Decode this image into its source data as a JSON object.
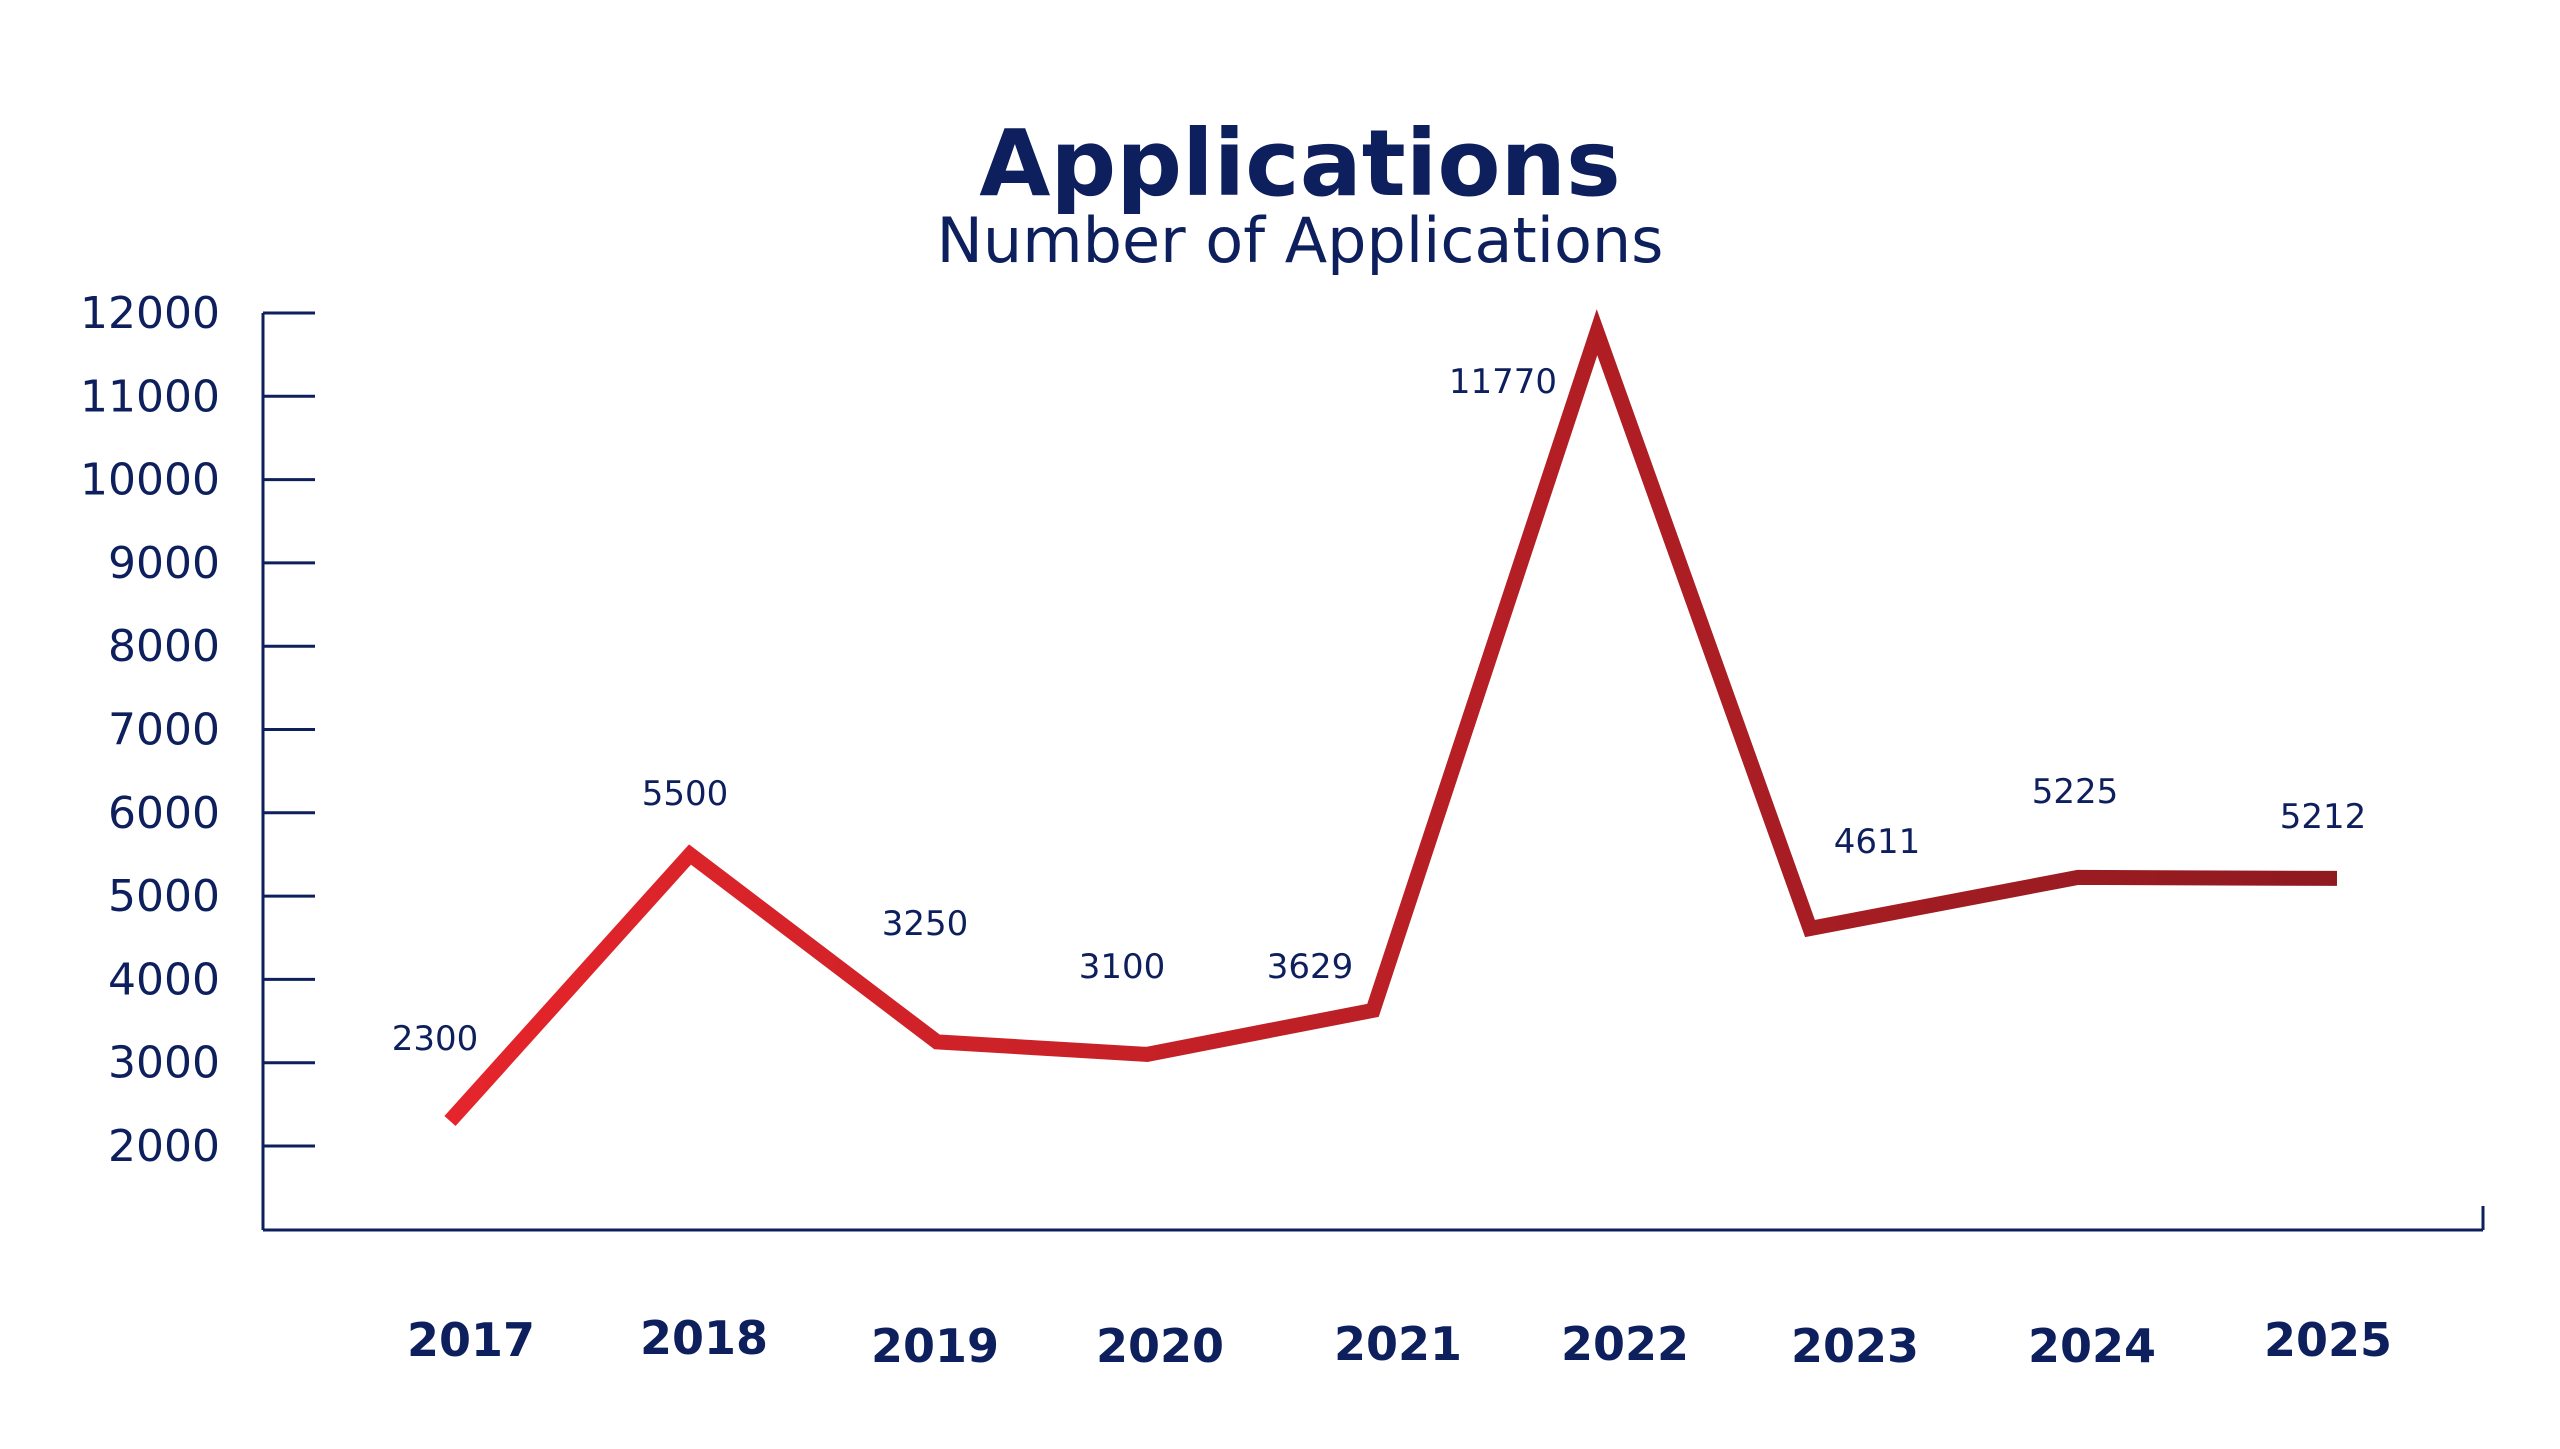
{
  "chart_data": {
    "type": "line",
    "title": "Applications",
    "subtitle": "Number of Applications",
    "xlabel": "",
    "ylabel": "",
    "categories": [
      "2017",
      "2018",
      "2019",
      "2020",
      "2021",
      "2022",
      "2023",
      "2024",
      "2025"
    ],
    "series": [
      {
        "values": [
          2300,
          5500,
          3250,
          3100,
          3629,
          11770,
          4611,
          5225,
          5212
        ],
        "data_labels": [
          "2300",
          "5500",
          "3250",
          "3100",
          "3629",
          "11770",
          "4611",
          "5225",
          "5212"
        ]
      }
    ],
    "yticks": [
      "2000",
      "3000",
      "4000",
      "5000",
      "6000",
      "7000",
      "8000",
      "9000",
      "10000",
      "11000",
      "12000"
    ],
    "ylim": [
      1000,
      12000
    ],
    "grid": false,
    "legend": "none",
    "colors": {
      "text": "#0d1f5c",
      "axis": "#0d1f5c",
      "line_start": "#e5252b",
      "line_end": "#8e1a20"
    }
  }
}
